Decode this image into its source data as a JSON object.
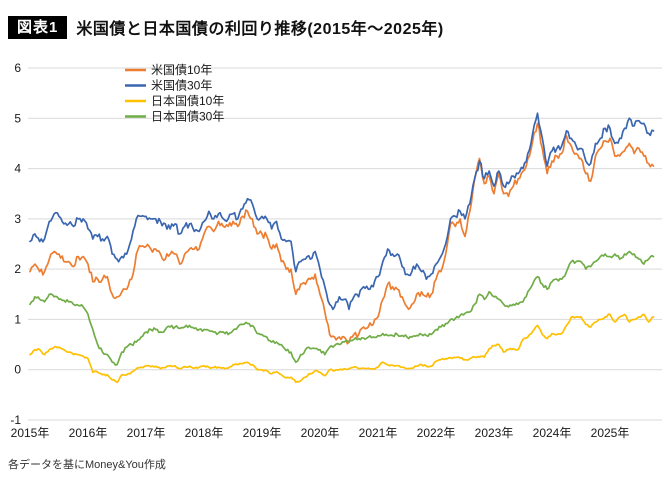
{
  "header": {
    "badge": "図表1",
    "title": "米国債と日本国債の利回り推移(2015年〜2025年)"
  },
  "footer": {
    "note": "各データを基にMoney&You作成"
  },
  "chart_data": {
    "type": "line",
    "title": "米国債と日本国債の利回り推移(2015年〜2025年)",
    "x_unit": "month",
    "x_start_year": 2015,
    "x_tick_labels": [
      "2015年",
      "2016年",
      "2017年",
      "2018年",
      "2019年",
      "2020年",
      "2021年",
      "2022年",
      "2023年",
      "2024年",
      "2025年"
    ],
    "ylim": [
      -1,
      6
    ],
    "yticks": [
      -1,
      0,
      1,
      2,
      3,
      4,
      5,
      6
    ],
    "grid": "horizontal",
    "grid_color": "#d9d9d9",
    "legend_position": "top-left-inside",
    "text_color": "#1a1a1a",
    "series": [
      {
        "name": "米国債10年",
        "color": "#ED7D31",
        "values": [
          1.95,
          2.1,
          1.95,
          1.95,
          2.2,
          2.35,
          2.3,
          2.15,
          2.15,
          2.05,
          2.25,
          2.25,
          2.1,
          1.75,
          1.8,
          1.8,
          1.85,
          1.5,
          1.45,
          1.55,
          1.6,
          1.8,
          2.3,
          2.45,
          2.45,
          2.4,
          2.4,
          2.3,
          2.2,
          2.3,
          2.3,
          2.1,
          2.3,
          2.4,
          2.4,
          2.4,
          2.7,
          2.85,
          2.75,
          2.95,
          2.85,
          2.85,
          2.95,
          2.85,
          3.05,
          3.15,
          3.0,
          2.7,
          2.7,
          2.65,
          2.4,
          2.5,
          2.15,
          2.0,
          2.0,
          1.5,
          1.7,
          1.7,
          1.8,
          1.9,
          1.5,
          1.15,
          0.7,
          0.65,
          0.65,
          0.65,
          0.55,
          0.7,
          0.7,
          0.85,
          0.85,
          0.9,
          1.05,
          1.4,
          1.7,
          1.65,
          1.6,
          1.45,
          1.25,
          1.3,
          1.5,
          1.55,
          1.45,
          1.5,
          1.8,
          1.95,
          2.3,
          2.9,
          2.85,
          3.0,
          2.65,
          3.15,
          3.8,
          4.2,
          3.7,
          3.85,
          3.5,
          3.9,
          3.5,
          3.45,
          3.65,
          3.8,
          3.95,
          4.2,
          4.55,
          4.9,
          4.4,
          3.9,
          4.15,
          4.25,
          4.3,
          4.65,
          4.45,
          4.3,
          4.2,
          3.9,
          3.75,
          4.25,
          4.4,
          4.55,
          4.6,
          4.25,
          4.25,
          4.35,
          4.5,
          4.3,
          4.4,
          4.25,
          4.1,
          4.05
        ]
      },
      {
        "name": "米国債30年",
        "color": "#3A66B0",
        "values": [
          2.55,
          2.7,
          2.55,
          2.6,
          2.95,
          3.1,
          3.05,
          2.9,
          2.9,
          2.85,
          3.0,
          3.0,
          2.8,
          2.6,
          2.65,
          2.6,
          2.65,
          2.3,
          2.2,
          2.25,
          2.3,
          2.6,
          3.0,
          3.05,
          3.05,
          3.0,
          3.0,
          2.95,
          2.9,
          2.8,
          2.9,
          2.7,
          2.85,
          2.9,
          2.75,
          2.75,
          2.95,
          3.15,
          3.0,
          3.1,
          3.0,
          3.0,
          3.1,
          3.0,
          3.2,
          3.4,
          3.3,
          3.0,
          3.05,
          3.0,
          2.8,
          2.95,
          2.6,
          2.55,
          2.55,
          1.95,
          2.15,
          2.2,
          2.2,
          2.35,
          2.0,
          1.65,
          1.3,
          1.25,
          1.45,
          1.4,
          1.2,
          1.45,
          1.45,
          1.65,
          1.6,
          1.65,
          1.85,
          2.15,
          2.4,
          2.3,
          2.3,
          2.05,
          1.9,
          1.95,
          2.1,
          1.95,
          1.8,
          1.9,
          2.1,
          2.25,
          2.5,
          3.0,
          3.05,
          3.15,
          3.0,
          3.3,
          3.8,
          4.15,
          3.8,
          3.95,
          3.65,
          3.95,
          3.65,
          3.7,
          3.85,
          3.9,
          4.0,
          4.3,
          4.7,
          5.1,
          4.6,
          4.05,
          4.35,
          4.4,
          4.45,
          4.75,
          4.6,
          4.45,
          4.4,
          4.15,
          4.1,
          4.5,
          4.6,
          4.8,
          4.8,
          4.5,
          4.6,
          4.8,
          5.0,
          4.85,
          4.95,
          4.9,
          4.7,
          4.75
        ]
      },
      {
        "name": "日本国債10年",
        "color": "#FFC000",
        "values": [
          0.3,
          0.4,
          0.4,
          0.3,
          0.4,
          0.45,
          0.45,
          0.4,
          0.35,
          0.3,
          0.3,
          0.27,
          0.22,
          -0.05,
          -0.05,
          -0.1,
          -0.1,
          -0.2,
          -0.25,
          -0.1,
          -0.1,
          -0.05,
          0.02,
          0.05,
          0.08,
          0.06,
          0.07,
          0.02,
          0.04,
          0.08,
          0.08,
          0.02,
          0.06,
          0.07,
          0.03,
          0.05,
          0.08,
          0.05,
          0.04,
          0.05,
          0.04,
          0.03,
          0.1,
          0.1,
          0.12,
          0.15,
          0.1,
          0.0,
          0.0,
          -0.02,
          -0.08,
          -0.04,
          -0.1,
          -0.16,
          -0.15,
          -0.25,
          -0.22,
          -0.15,
          -0.08,
          -0.02,
          -0.05,
          -0.12,
          0.0,
          -0.02,
          0.0,
          0.02,
          0.02,
          0.05,
          0.02,
          0.03,
          0.03,
          0.02,
          0.05,
          0.15,
          0.1,
          0.09,
          0.08,
          0.05,
          0.02,
          0.03,
          0.07,
          0.1,
          0.07,
          0.07,
          0.17,
          0.2,
          0.22,
          0.24,
          0.24,
          0.23,
          0.2,
          0.22,
          0.25,
          0.25,
          0.25,
          0.42,
          0.48,
          0.5,
          0.35,
          0.4,
          0.42,
          0.4,
          0.6,
          0.65,
          0.76,
          0.88,
          0.7,
          0.62,
          0.72,
          0.7,
          0.72,
          0.88,
          1.05,
          1.05,
          1.05,
          0.9,
          0.85,
          0.95,
          1.0,
          1.05,
          1.1,
          0.95,
          1.05,
          1.1,
          0.95,
          1.0,
          1.05,
          1.1,
          0.95,
          1.05
        ]
      },
      {
        "name": "日本国債30年",
        "color": "#70AD47",
        "values": [
          1.3,
          1.45,
          1.4,
          1.35,
          1.5,
          1.45,
          1.4,
          1.38,
          1.35,
          1.3,
          1.28,
          1.25,
          1.1,
          0.8,
          0.5,
          0.35,
          0.3,
          0.15,
          0.1,
          0.35,
          0.45,
          0.5,
          0.55,
          0.65,
          0.75,
          0.8,
          0.8,
          0.75,
          0.8,
          0.85,
          0.85,
          0.82,
          0.85,
          0.88,
          0.82,
          0.8,
          0.8,
          0.78,
          0.75,
          0.73,
          0.75,
          0.7,
          0.78,
          0.85,
          0.9,
          0.92,
          0.88,
          0.72,
          0.7,
          0.65,
          0.55,
          0.55,
          0.5,
          0.38,
          0.35,
          0.15,
          0.3,
          0.4,
          0.42,
          0.42,
          0.4,
          0.3,
          0.45,
          0.48,
          0.5,
          0.55,
          0.55,
          0.6,
          0.62,
          0.63,
          0.65,
          0.65,
          0.68,
          0.72,
          0.68,
          0.68,
          0.7,
          0.68,
          0.65,
          0.65,
          0.68,
          0.7,
          0.68,
          0.7,
          0.8,
          0.85,
          0.92,
          1.0,
          1.02,
          1.08,
          1.12,
          1.15,
          1.3,
          1.5,
          1.4,
          1.55,
          1.45,
          1.4,
          1.3,
          1.25,
          1.3,
          1.3,
          1.35,
          1.55,
          1.7,
          1.85,
          1.7,
          1.6,
          1.75,
          1.8,
          1.8,
          1.95,
          2.15,
          2.15,
          2.15,
          2.0,
          2.05,
          2.15,
          2.25,
          2.3,
          2.25,
          2.3,
          2.2,
          2.3,
          2.35,
          2.3,
          2.2,
          2.1,
          2.2,
          2.25
        ]
      }
    ]
  }
}
